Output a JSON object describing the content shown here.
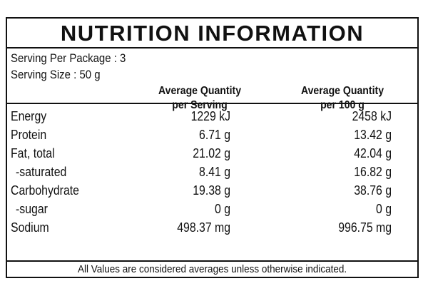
{
  "title": "NUTRITION INFORMATION",
  "serving": {
    "per_package": "Serving Per Package : 3",
    "size": "Serving Size : 50 g"
  },
  "columns": {
    "per_serving": [
      "Average Quantity",
      "per Serving"
    ],
    "per_100g": [
      "Average Quantity",
      "per 100 g"
    ]
  },
  "rows": [
    {
      "name": "Energy",
      "per_serving": "1229 kJ",
      "per_100g": "2458 kJ"
    },
    {
      "name": "Protein",
      "per_serving": "6.71 g",
      "per_100g": "13.42 g"
    },
    {
      "name": "Fat, total",
      "per_serving": "21.02 g",
      "per_100g": "42.04 g"
    },
    {
      "name": "-saturated",
      "per_serving": "8.41 g",
      "per_100g": "16.82 g"
    },
    {
      "name": "Carbohydrate",
      "per_serving": "19.38 g",
      "per_100g": "38.76 g"
    },
    {
      "name": "-sugar",
      "per_serving": "0 g",
      "per_100g": "0 g"
    },
    {
      "name": "Sodium",
      "per_serving": "498.37 mg",
      "per_100g": "996.75 mg"
    }
  ],
  "footer": "All Values are considered averages unless otherwise indicated."
}
